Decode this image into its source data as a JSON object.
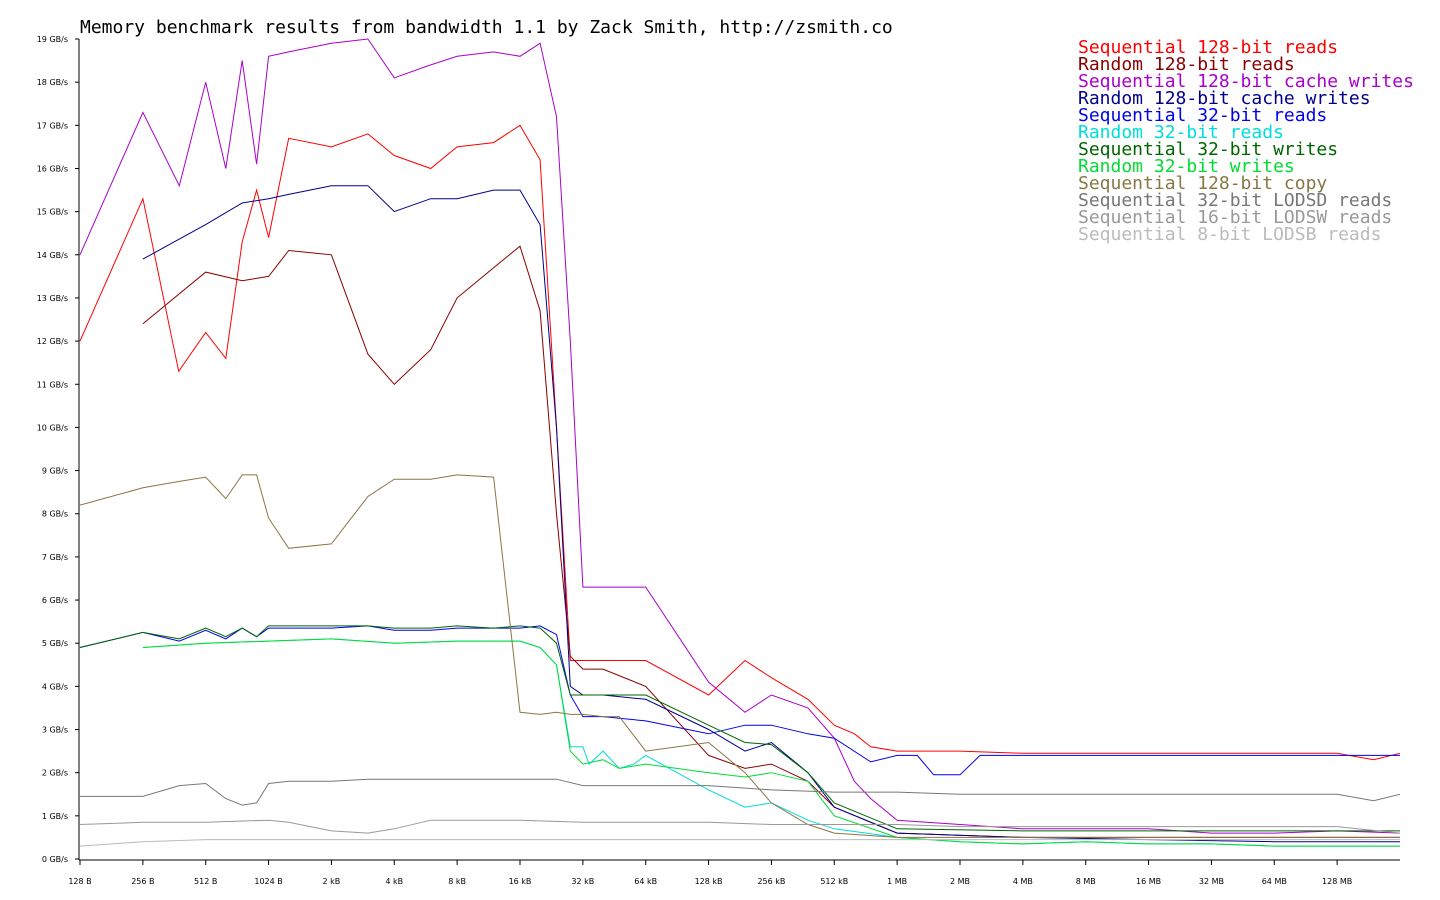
{
  "chart_data": {
    "type": "line",
    "title": "Memory benchmark results from bandwidth 1.1 by Zack Smith, http://zsmith.co",
    "y_ticks": [
      "0 GB/s",
      "1 GB/s",
      "2 GB/s",
      "3 GB/s",
      "4 GB/s",
      "5 GB/s",
      "6 GB/s",
      "7 GB/s",
      "8 GB/s",
      "9 GB/s",
      "10 GB/s",
      "11 GB/s",
      "12 GB/s",
      "13 GB/s",
      "14 GB/s",
      "15 GB/s",
      "16 GB/s",
      "17 GB/s",
      "18 GB/s",
      "19 GB/s"
    ],
    "x_ticks": [
      "128 B",
      "256 B",
      "512 B",
      "1024 B",
      "2 kB",
      "4 kB",
      "8 kB",
      "16 kB",
      "32 kB",
      "64 kB",
      "128 kB",
      "256 kB",
      "512 kB",
      "1 MB",
      "2 MB",
      "4 MB",
      "8 MB",
      "16 MB",
      "32 MB",
      "64 MB",
      "128 MB"
    ],
    "ylim": [
      0,
      19
    ],
    "x_scale": "log2",
    "x_unit_note": "x values are log2 of block size in bytes",
    "series": [
      {
        "name": "Sequential 128-bit reads",
        "color": "#ff0000",
        "x": [
          7,
          8,
          8.57,
          9,
          9.32,
          9.58,
          9.81,
          10,
          10.32,
          11,
          11.58,
          12,
          12.58,
          13,
          13.58,
          14,
          14.32,
          14.58,
          14.8,
          15.0,
          15.32,
          16,
          17,
          17.58,
          18,
          18.58,
          19,
          19.32,
          19.58,
          20,
          20.58,
          21,
          22,
          23,
          24,
          25,
          26,
          27,
          27.58,
          28
        ],
        "y": [
          12.0,
          15.3,
          11.3,
          12.2,
          11.6,
          14.3,
          15.5,
          14.4,
          16.7,
          16.5,
          16.8,
          16.3,
          16.0,
          16.5,
          16.6,
          17.0,
          16.2,
          10.0,
          4.6,
          4.6,
          4.6,
          4.6,
          3.8,
          4.6,
          4.2,
          3.7,
          3.1,
          2.9,
          2.6,
          2.5,
          2.5,
          2.5,
          2.45,
          2.45,
          2.45,
          2.45,
          2.45,
          2.45,
          2.3,
          2.45
        ]
      },
      {
        "name": "Random 128-bit reads",
        "color": "#880000",
        "x": [
          8,
          9,
          9.58,
          10,
          10.32,
          11,
          11.58,
          12,
          12.58,
          13,
          13.58,
          14,
          14.32,
          14.58,
          14.8,
          15.0,
          15.32,
          16,
          17,
          17.58,
          18,
          18.58,
          19,
          20,
          22,
          24,
          26,
          28
        ],
        "y": [
          12.4,
          13.6,
          13.4,
          13.5,
          14.1,
          14.0,
          11.7,
          11.0,
          11.8,
          13.0,
          13.7,
          14.2,
          12.7,
          8.0,
          4.7,
          4.4,
          4.4,
          4.0,
          2.4,
          2.1,
          2.2,
          1.8,
          1.2,
          0.6,
          0.5,
          0.5,
          0.5,
          0.5
        ]
      },
      {
        "name": "Sequential 128-bit cache writes",
        "color": "#aa00cc",
        "x": [
          7,
          8,
          8.58,
          9,
          9.32,
          9.58,
          9.81,
          10,
          10.32,
          11,
          11.58,
          12,
          12.58,
          13,
          13.58,
          14,
          14.32,
          14.58,
          14.8,
          15.0,
          15.32,
          16,
          17,
          17.58,
          18,
          18.58,
          19,
          19.32,
          19.58,
          20,
          21,
          22,
          23,
          24,
          25,
          26,
          27,
          28
        ],
        "y": [
          14.0,
          17.3,
          15.6,
          18.0,
          16.0,
          18.5,
          16.1,
          18.6,
          18.7,
          18.9,
          19.0,
          18.1,
          18.4,
          18.6,
          18.7,
          18.6,
          18.9,
          17.2,
          12.0,
          6.3,
          6.3,
          6.3,
          4.1,
          3.4,
          3.8,
          3.5,
          2.8,
          1.8,
          1.4,
          0.9,
          0.8,
          0.7,
          0.7,
          0.7,
          0.6,
          0.6,
          0.65,
          0.6
        ]
      },
      {
        "name": "Random 128-bit cache writes",
        "color": "#000088",
        "x": [
          8,
          9,
          9.58,
          10,
          10.32,
          11,
          11.58,
          12,
          12.58,
          13,
          13.58,
          14,
          14.32,
          14.58,
          14.8,
          15.0,
          15.32,
          16,
          17,
          17.58,
          18,
          18.58,
          19,
          20,
          22,
          24,
          26,
          28
        ],
        "y": [
          13.9,
          14.7,
          15.2,
          15.3,
          15.4,
          15.6,
          15.6,
          15.0,
          15.3,
          15.3,
          15.5,
          15.5,
          14.7,
          10.0,
          4.0,
          3.8,
          3.8,
          3.7,
          3.0,
          2.5,
          2.7,
          2.0,
          1.2,
          0.6,
          0.5,
          0.45,
          0.4,
          0.4
        ]
      },
      {
        "name": "Sequential 32-bit reads",
        "color": "#0000ee",
        "x": [
          7,
          8,
          8.58,
          9,
          9.32,
          9.58,
          9.81,
          10,
          10.32,
          11,
          11.58,
          12,
          12.58,
          13,
          13.58,
          14,
          14.32,
          14.58,
          14.8,
          15.0,
          15.32,
          16,
          17,
          17.58,
          18,
          18.58,
          19,
          19.58,
          20,
          20.32,
          20.58,
          21,
          21.32,
          21.58,
          22,
          23,
          24,
          25,
          26,
          27,
          28
        ],
        "y": [
          4.9,
          5.25,
          5.05,
          5.3,
          5.1,
          5.35,
          5.15,
          5.35,
          5.35,
          5.35,
          5.4,
          5.3,
          5.3,
          5.35,
          5.35,
          5.35,
          5.4,
          5.2,
          3.8,
          3.3,
          3.3,
          3.2,
          2.9,
          3.1,
          3.1,
          2.9,
          2.8,
          2.25,
          2.4,
          2.4,
          1.95,
          1.95,
          2.4,
          2.4,
          2.4,
          2.4,
          2.4,
          2.4,
          2.4,
          2.4,
          2.4
        ]
      },
      {
        "name": "Random 32-bit reads",
        "color": "#00dddd",
        "x": [
          8,
          9,
          10,
          11,
          12,
          13,
          14,
          14.32,
          14.58,
          14.8,
          15.0,
          15.1,
          15.32,
          15.58,
          15.81,
          16,
          17,
          17.58,
          18,
          18.58,
          19,
          20,
          21,
          22,
          23,
          24,
          25,
          26,
          27,
          28
        ],
        "y": [
          4.9,
          5.0,
          5.05,
          5.1,
          5.0,
          5.05,
          5.05,
          4.9,
          4.5,
          2.6,
          2.6,
          2.2,
          2.5,
          2.1,
          2.2,
          2.4,
          1.6,
          1.2,
          1.3,
          0.9,
          0.7,
          0.5,
          0.4,
          0.35,
          0.4,
          0.35,
          0.35,
          0.3,
          0.3,
          0.3
        ]
      },
      {
        "name": "Sequential 32-bit writes",
        "color": "#006600",
        "x": [
          7,
          8,
          8.58,
          9,
          9.32,
          9.58,
          9.81,
          10,
          10.32,
          11,
          11.58,
          12,
          12.58,
          13,
          13.58,
          14,
          14.32,
          14.58,
          14.8,
          15.0,
          15.32,
          16,
          17,
          17.58,
          18,
          18.58,
          19,
          20,
          22,
          24,
          26,
          27,
          28
        ],
        "y": [
          4.9,
          5.25,
          5.1,
          5.35,
          5.15,
          5.35,
          5.15,
          5.4,
          5.4,
          5.4,
          5.4,
          5.35,
          5.35,
          5.4,
          5.35,
          5.4,
          5.35,
          5.0,
          3.8,
          3.8,
          3.8,
          3.8,
          3.1,
          2.7,
          2.65,
          2.0,
          1.3,
          0.7,
          0.65,
          0.65,
          0.65,
          0.65,
          0.65
        ]
      },
      {
        "name": "Random 32-bit writes",
        "color": "#00dd33",
        "x": [
          8,
          9,
          10,
          11,
          12,
          13,
          14,
          14.32,
          14.58,
          14.8,
          15.0,
          15.32,
          15.58,
          16,
          17,
          17.58,
          18,
          18.58,
          19,
          20,
          21,
          22,
          23,
          24,
          25,
          26,
          27,
          28
        ],
        "y": [
          4.9,
          5.0,
          5.05,
          5.1,
          5.0,
          5.05,
          5.05,
          4.9,
          4.5,
          2.5,
          2.2,
          2.3,
          2.1,
          2.2,
          2.0,
          1.9,
          2.0,
          1.8,
          1.0,
          0.5,
          0.4,
          0.35,
          0.4,
          0.35,
          0.35,
          0.3,
          0.3,
          0.3
        ]
      },
      {
        "name": "Sequential 128-bit copy",
        "color": "#887744",
        "x": [
          7,
          8,
          8.58,
          9,
          9.32,
          9.58,
          9.81,
          10,
          10.32,
          11,
          11.58,
          12,
          12.58,
          13,
          13.58,
          14,
          14.32,
          14.58,
          14.8,
          15.0,
          15.32,
          15.58,
          16,
          17,
          17.58,
          18,
          18.58,
          19,
          20,
          22,
          24,
          26,
          28
        ],
        "y": [
          8.2,
          8.6,
          8.75,
          8.85,
          8.35,
          8.9,
          8.9,
          7.9,
          7.2,
          7.3,
          8.4,
          8.8,
          8.8,
          8.9,
          8.85,
          3.4,
          3.35,
          3.4,
          3.35,
          3.35,
          3.3,
          3.3,
          2.5,
          2.7,
          2.0,
          1.3,
          0.8,
          0.6,
          0.5,
          0.5,
          0.5,
          0.5,
          0.5
        ]
      },
      {
        "name": "Sequential 32-bit LODSD reads",
        "color": "#777777",
        "x": [
          7,
          8,
          8.58,
          9,
          9.32,
          9.58,
          9.81,
          10,
          10.32,
          11,
          11.58,
          12,
          13,
          14,
          14.58,
          15,
          16,
          17,
          18,
          19,
          20,
          21,
          22,
          23,
          24,
          25,
          26,
          27,
          27.58,
          28
        ],
        "y": [
          1.45,
          1.45,
          1.7,
          1.75,
          1.4,
          1.25,
          1.3,
          1.75,
          1.8,
          1.8,
          1.85,
          1.85,
          1.85,
          1.85,
          1.85,
          1.7,
          1.7,
          1.7,
          1.6,
          1.55,
          1.55,
          1.5,
          1.5,
          1.5,
          1.5,
          1.5,
          1.5,
          1.5,
          1.35,
          1.5
        ]
      },
      {
        "name": "Sequential 16-bit LODSW reads",
        "color": "#999999",
        "x": [
          7,
          8,
          9,
          10,
          10.32,
          11,
          11.58,
          12,
          12.58,
          13,
          14,
          15,
          16,
          17,
          18,
          19,
          20,
          21,
          22,
          23,
          24,
          25,
          26,
          27,
          27.32,
          28
        ],
        "y": [
          0.8,
          0.85,
          0.85,
          0.9,
          0.85,
          0.65,
          0.6,
          0.7,
          0.9,
          0.9,
          0.9,
          0.85,
          0.85,
          0.85,
          0.8,
          0.8,
          0.8,
          0.75,
          0.75,
          0.75,
          0.75,
          0.75,
          0.75,
          0.75,
          0.7,
          0.6
        ]
      },
      {
        "name": "Sequential 8-bit LODSB reads",
        "color": "#bbbbbb",
        "x": [
          7,
          8,
          9,
          10,
          11,
          12,
          13,
          14,
          15,
          16,
          17,
          18,
          19,
          20,
          21,
          22,
          23,
          24,
          25,
          26,
          27,
          28
        ],
        "y": [
          0.3,
          0.4,
          0.45,
          0.45,
          0.45,
          0.45,
          0.45,
          0.45,
          0.45,
          0.45,
          0.45,
          0.45,
          0.45,
          0.45,
          0.45,
          0.45,
          0.45,
          0.45,
          0.45,
          0.45,
          0.45,
          0.45
        ]
      }
    ]
  }
}
